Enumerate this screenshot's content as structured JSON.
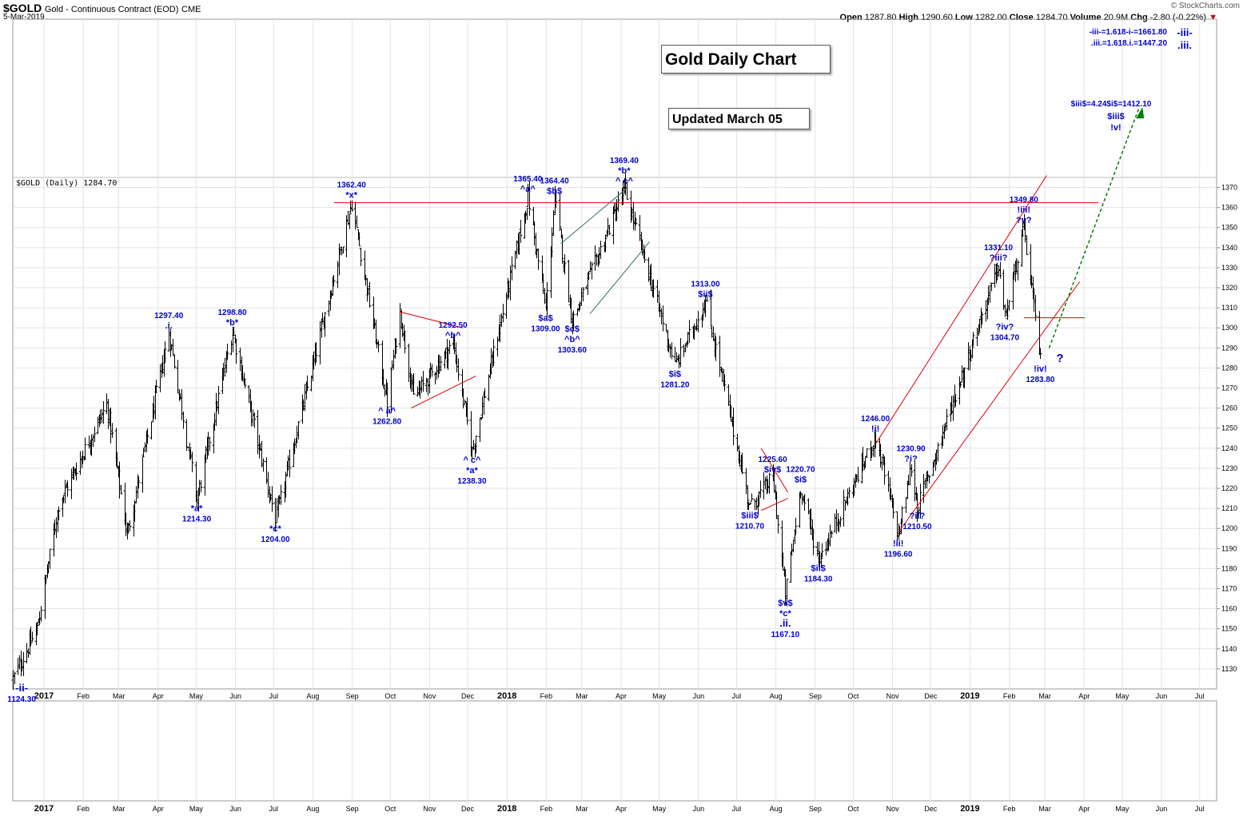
{
  "header": {
    "symbol": "$GOLD",
    "description": "Gold - Continuous Contract (EOD)",
    "exchange": "CME",
    "date": "5-Mar-2019",
    "brand": "© StockCharts.com",
    "open_label": "Open",
    "open": "1287.80",
    "high_label": "High",
    "high": "1290.60",
    "low_label": "Low",
    "low": "1282.00",
    "close_label": "Close",
    "close": "1284.70",
    "volume_label": "Volume",
    "volume": "20.9M",
    "chg_label": "Chg",
    "chg": "-2.80 (-0.22%)",
    "chg_arrow": "▼"
  },
  "title_box": "Gold Daily Chart",
  "updated_box": "Updated March 05",
  "panel_label": "$GOLD (Daily) 1284.70",
  "colors": {
    "bars": "#000000",
    "labels": "#0000cc",
    "red_lines": "#e00000",
    "projection": "#008000",
    "grid": "#e3e3e3"
  },
  "chart_data": {
    "type": "ohlc",
    "y_axis": {
      "min": 1120,
      "max": 1375,
      "ticks": [
        1130,
        1140,
        1150,
        1160,
        1170,
        1180,
        1190,
        1200,
        1210,
        1220,
        1230,
        1240,
        1250,
        1260,
        1270,
        1280,
        1290,
        1300,
        1310,
        1320,
        1330,
        1340,
        1350,
        1360,
        1370
      ]
    },
    "x_axis": {
      "ticks": [
        "2017",
        "Feb",
        "Mar",
        "Apr",
        "May",
        "Jun",
        "Jul",
        "Aug",
        "Sep",
        "Oct",
        "Nov",
        "Dec",
        "2018",
        "Feb",
        "Mar",
        "Apr",
        "May",
        "Jun",
        "Jul",
        "Aug",
        "Sep",
        "Oct",
        "Nov",
        "Dec",
        "2019",
        "Feb",
        "Mar",
        "Apr",
        "May",
        "Jun",
        "Jul"
      ],
      "bold_ticks": [
        "2017",
        "2018",
        "2019"
      ]
    },
    "grid": true,
    "price_path": [
      [
        "2016-12-15",
        1125
      ],
      [
        "2017-01-03",
        1150
      ],
      [
        "2017-01-20",
        1212
      ],
      [
        "2017-02-27",
        1262
      ],
      [
        "2017-03-15",
        1197
      ],
      [
        "2017-04-17",
        1297.4
      ],
      [
        "2017-05-09",
        1214.3
      ],
      [
        "2017-06-06",
        1298.8
      ],
      [
        "2017-07-10",
        1204
      ],
      [
        "2017-09-08",
        1362.4
      ],
      [
        "2017-10-06",
        1262.8
      ],
      [
        "2017-10-16",
        1308
      ],
      [
        "2017-10-27",
        1265
      ],
      [
        "2017-11-27",
        1292.5
      ],
      [
        "2017-12-12",
        1238.3
      ],
      [
        "2018-01-25",
        1365.4
      ],
      [
        "2018-02-08",
        1309
      ],
      [
        "2018-02-15",
        1364.4
      ],
      [
        "2018-03-01",
        1303.6
      ],
      [
        "2018-04-11",
        1369.4
      ],
      [
        "2018-05-21",
        1281.2
      ],
      [
        "2018-06-14",
        1313
      ],
      [
        "2018-07-19",
        1210.7
      ],
      [
        "2018-08-06",
        1225.6
      ],
      [
        "2018-08-16",
        1167.1
      ],
      [
        "2018-08-28",
        1220.7
      ],
      [
        "2018-09-11",
        1184.3
      ],
      [
        "2018-10-26",
        1246
      ],
      [
        "2018-11-13",
        1196.6
      ],
      [
        "2018-11-23",
        1230.9
      ],
      [
        "2018-11-28",
        1210.5
      ],
      [
        "2019-01-31",
        1331.1
      ],
      [
        "2019-02-05",
        1304.7
      ],
      [
        "2019-02-20",
        1349.8
      ],
      [
        "2019-03-05",
        1283.8
      ]
    ],
    "wave_labels": [
      {
        "text": "1297.40",
        "date": "2017-04-17",
        "price": 1297.4,
        "pos": "above",
        "extra": [
          ".i."
        ]
      },
      {
        "text": "1298.80",
        "date": "2017-06-06",
        "price": 1298.8,
        "pos": "above",
        "extra": [
          "*b*"
        ]
      },
      {
        "text": "1362.40",
        "date": "2017-09-08",
        "price": 1362.4,
        "pos": "above",
        "extra": [
          "*x*"
        ]
      },
      {
        "text": "1365.40",
        "date": "2018-01-25",
        "price": 1365.4,
        "pos": "above",
        "extra": [
          "^a^"
        ]
      },
      {
        "text": "1364.40",
        "date": "2018-02-15",
        "price": 1364.4,
        "pos": "above",
        "extra": [
          "$b$"
        ]
      },
      {
        "text": "1369.40",
        "date": "2018-04-11",
        "price": 1369.4,
        "pos": "above",
        "extra": [
          "*b*",
          "^ c^"
        ]
      },
      {
        "text": "1313.00",
        "date": "2018-06-14",
        "price": 1313.0,
        "pos": "above",
        "extra": [
          "$ii$"
        ]
      },
      {
        "text": "1292.50",
        "date": "2017-11-27",
        "price": 1292.5,
        "pos": "above",
        "extra": [
          "^b^"
        ]
      },
      {
        "text": "1225.60",
        "date": "2018-08-06",
        "price": 1225.6,
        "pos": "above",
        "extra": [
          "$iv$"
        ]
      },
      {
        "text": "1220.70",
        "date": "2018-08-28",
        "price": 1220.7,
        "pos": "above",
        "extra": [
          "$i$"
        ]
      },
      {
        "text": "1246.00",
        "date": "2018-10-26",
        "price": 1246.0,
        "pos": "above",
        "extra": [
          "!i!"
        ]
      },
      {
        "text": "1230.90",
        "date": "2018-11-23",
        "price": 1230.9,
        "pos": "above",
        "extra": [
          "?i?"
        ]
      },
      {
        "text": "1331.10",
        "date": "2019-01-31",
        "price": 1331.1,
        "pos": "above",
        "extra": [
          "?iii?"
        ]
      },
      {
        "text": "1349.80",
        "date": "2019-02-20",
        "price": 1349.8,
        "pos": "above",
        "extra": [
          "!iii!",
          "?v?"
        ]
      },
      {
        "text": "1214.30",
        "date": "2017-05-09",
        "price": 1214.3,
        "pos": "below",
        "extra": [
          "*a*"
        ]
      },
      {
        "text": "1204.00",
        "date": "2017-07-10",
        "price": 1204.0,
        "pos": "below",
        "extra": [
          "*c*"
        ]
      },
      {
        "text": "1262.80",
        "date": "2017-10-06",
        "price": 1262.8,
        "pos": "below",
        "extra": [
          "^ a^"
        ]
      },
      {
        "text": "1238.30",
        "date": "2017-12-12",
        "price": 1238.3,
        "pos": "below",
        "extra": [
          "^ c^",
          "*a*"
        ]
      },
      {
        "text": "1309.00",
        "date": "2018-02-08",
        "price": 1309.0,
        "pos": "below",
        "extra": [
          "$a$"
        ]
      },
      {
        "text": "1303.60",
        "date": "2018-03-01",
        "price": 1303.6,
        "pos": "below",
        "extra": [
          "$c$",
          "^b^"
        ]
      },
      {
        "text": "1281.20",
        "date": "2018-05-21",
        "price": 1281.2,
        "pos": "below",
        "extra": [
          "$i$"
        ]
      },
      {
        "text": "1210.70",
        "date": "2018-07-19",
        "price": 1210.7,
        "pos": "below",
        "extra": [
          "$iii$"
        ]
      },
      {
        "text": "1167.10",
        "date": "2018-08-16",
        "price": 1167.1,
        "pos": "below",
        "extra": [
          "$v$",
          "*c*",
          ".ii."
        ]
      },
      {
        "text": "1184.30",
        "date": "2018-09-11",
        "price": 1184.3,
        "pos": "below",
        "extra": [
          "$ii$"
        ]
      },
      {
        "text": "1196.60",
        "date": "2018-11-13",
        "price": 1196.6,
        "pos": "below",
        "extra": [
          "!ii!"
        ]
      },
      {
        "text": "1210.50",
        "date": "2018-11-28",
        "price": 1210.5,
        "pos": "below",
        "extra": [
          "?ii?"
        ]
      },
      {
        "text": "1304.70",
        "date": "2019-02-05",
        "price": 1304.7,
        "pos": "below",
        "extra": [
          "?iv?"
        ]
      },
      {
        "text": "1283.80",
        "date": "2019-03-05",
        "price": 1283.8,
        "pos": "below",
        "extra": [
          "!iv!"
        ]
      },
      {
        "text": "1124.30",
        "date": "2016-12-22",
        "price": 1124.3,
        "pos": "below",
        "extra": [
          "-ii-"
        ]
      }
    ],
    "question_mark": "?",
    "projections": {
      "line1": "-iii-=1.618-i-=1661.80",
      "line2": ".iii.=1.618.i.=1447.20",
      "tag1": "-iii-",
      "tag2": ".iii.",
      "line3": "$iii$=4.24$i$=1412.10",
      "tag3": "$iii$",
      "tag4": "!v!"
    }
  }
}
